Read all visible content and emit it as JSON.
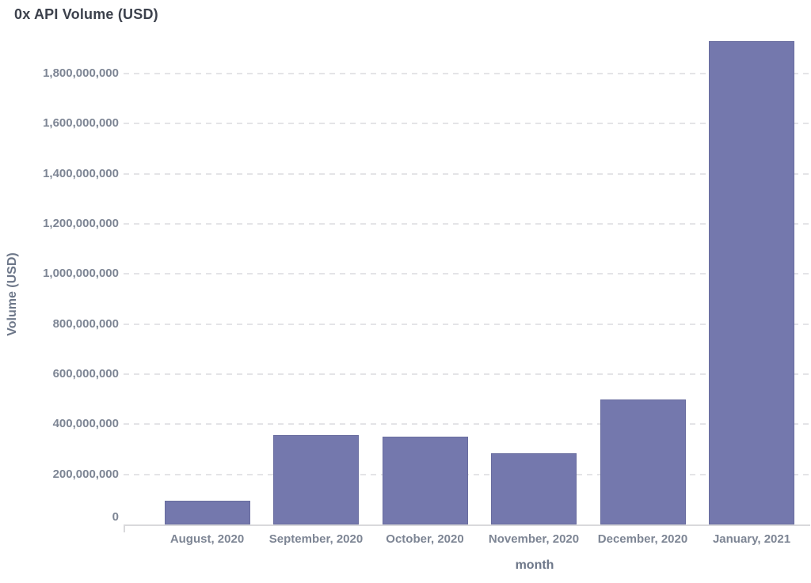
{
  "chart_data": {
    "type": "bar",
    "title": "0x API Volume (USD)",
    "xlabel": "month",
    "ylabel": "Volume (USD)",
    "categories": [
      "August, 2020",
      "September, 2020",
      "October, 2020",
      "November, 2020",
      "December, 2020",
      "January, 2021"
    ],
    "values": [
      95000000,
      356000000,
      350000000,
      285000000,
      500000000,
      1930000000
    ],
    "ylim": [
      0,
      1955000000
    ],
    "y_ticks": [
      {
        "value": 0,
        "label": "0"
      },
      {
        "value": 200000000,
        "label": "200,000,000"
      },
      {
        "value": 400000000,
        "label": "400,000,000"
      },
      {
        "value": 600000000,
        "label": "600,000,000"
      },
      {
        "value": 800000000,
        "label": "800,000,000"
      },
      {
        "value": 1000000000,
        "label": "1,000,000,000"
      },
      {
        "value": 1200000000,
        "label": "1,200,000,000"
      },
      {
        "value": 1400000000,
        "label": "1,400,000,000"
      },
      {
        "value": 1600000000,
        "label": "1,600,000,000"
      },
      {
        "value": 1800000000,
        "label": "1,800,000,000"
      }
    ],
    "grid": "horizontal-dashed",
    "legend": "none",
    "colors": {
      "bar_fill": "#7478ad",
      "gridline": "#e4e4e7",
      "axis_line": "#d9d9dc",
      "tick_label": "#7d8594",
      "axis_title": "#6d7789",
      "title": "#3c414c",
      "background": "#ffffff"
    }
  }
}
